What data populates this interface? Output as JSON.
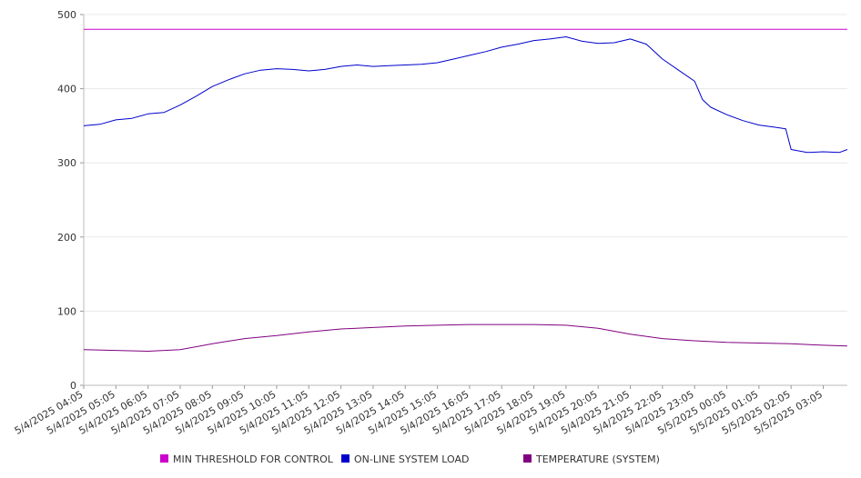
{
  "chart_data": {
    "type": "line",
    "title": "",
    "xlabel": "",
    "ylabel": "",
    "ylim": [
      0,
      500
    ],
    "yticks": [
      0,
      100,
      200,
      300,
      400,
      500
    ],
    "x_ticks": [
      "5/4/2025 04:05",
      "5/4/2025 05:05",
      "5/4/2025 06:05",
      "5/4/2025 07:05",
      "5/4/2025 08:05",
      "5/4/2025 09:05",
      "5/4/2025 10:05",
      "5/4/2025 11:05",
      "5/4/2025 12:05",
      "5/4/2025 13:05",
      "5/4/2025 14:05",
      "5/4/2025 15:05",
      "5/4/2025 16:05",
      "5/4/2025 17:05",
      "5/4/2025 18:05",
      "5/4/2025 19:05",
      "5/4/2025 20:05",
      "5/4/2025 21:05",
      "5/4/2025 22:05",
      "5/4/2025 23:05",
      "5/5/2025 00:05",
      "5/5/2025 01:05",
      "5/5/2025 02:05",
      "5/5/2025 03:05"
    ],
    "grid": true,
    "legend_position": "bottom",
    "series": [
      {
        "name": "MIN THRESHOLD FOR CONTROL",
        "color": "#cc00cc",
        "points": [
          [
            "5/4/2025 04:05",
            480
          ],
          [
            "5/5/2025 03:05",
            480
          ],
          [
            "5/5/2025 03:50",
            480
          ]
        ]
      },
      {
        "name": "ON-LINE SYSTEM LOAD",
        "color": "#0000cc",
        "points": [
          [
            "5/4/2025 04:05",
            350
          ],
          [
            "5/4/2025 04:35",
            352
          ],
          [
            "5/4/2025 05:05",
            358
          ],
          [
            "5/4/2025 05:35",
            360
          ],
          [
            "5/4/2025 06:05",
            366
          ],
          [
            "5/4/2025 06:35",
            368
          ],
          [
            "5/4/2025 07:05",
            378
          ],
          [
            "5/4/2025 07:35",
            390
          ],
          [
            "5/4/2025 08:05",
            403
          ],
          [
            "5/4/2025 08:35",
            412
          ],
          [
            "5/4/2025 09:05",
            420
          ],
          [
            "5/4/2025 09:35",
            425
          ],
          [
            "5/4/2025 10:05",
            427
          ],
          [
            "5/4/2025 10:35",
            426
          ],
          [
            "5/4/2025 11:05",
            424
          ],
          [
            "5/4/2025 11:35",
            426
          ],
          [
            "5/4/2025 12:05",
            430
          ],
          [
            "5/4/2025 12:35",
            432
          ],
          [
            "5/4/2025 13:05",
            430
          ],
          [
            "5/4/2025 13:35",
            431
          ],
          [
            "5/4/2025 14:05",
            432
          ],
          [
            "5/4/2025 14:35",
            433
          ],
          [
            "5/4/2025 15:05",
            435
          ],
          [
            "5/4/2025 15:35",
            440
          ],
          [
            "5/4/2025 16:05",
            445
          ],
          [
            "5/4/2025 16:35",
            450
          ],
          [
            "5/4/2025 17:05",
            456
          ],
          [
            "5/4/2025 17:35",
            460
          ],
          [
            "5/4/2025 18:05",
            465
          ],
          [
            "5/4/2025 18:35",
            467
          ],
          [
            "5/4/2025 19:05",
            470
          ],
          [
            "5/4/2025 19:35",
            464
          ],
          [
            "5/4/2025 20:05",
            461
          ],
          [
            "5/4/2025 20:35",
            462
          ],
          [
            "5/4/2025 21:05",
            467
          ],
          [
            "5/4/2025 21:35",
            460
          ],
          [
            "5/4/2025 22:05",
            440
          ],
          [
            "5/4/2025 22:35",
            425
          ],
          [
            "5/4/2025 23:05",
            410
          ],
          [
            "5/4/2025 23:20",
            385
          ],
          [
            "5/4/2025 23:35",
            375
          ],
          [
            "5/5/2025 00:05",
            365
          ],
          [
            "5/5/2025 00:35",
            357
          ],
          [
            "5/5/2025 01:05",
            351
          ],
          [
            "5/5/2025 01:35",
            348
          ],
          [
            "5/5/2025 01:55",
            346
          ],
          [
            "5/5/2025 02:05",
            318
          ],
          [
            "5/5/2025 02:35",
            314
          ],
          [
            "5/5/2025 03:05",
            315
          ],
          [
            "5/5/2025 03:35",
            314
          ],
          [
            "5/5/2025 03:50",
            318
          ]
        ]
      },
      {
        "name": "TEMPERATURE (SYSTEM)",
        "color": "#800080",
        "points": [
          [
            "5/4/2025 04:05",
            48
          ],
          [
            "5/4/2025 05:05",
            47
          ],
          [
            "5/4/2025 06:05",
            46
          ],
          [
            "5/4/2025 07:05",
            48
          ],
          [
            "5/4/2025 08:05",
            56
          ],
          [
            "5/4/2025 09:05",
            63
          ],
          [
            "5/4/2025 10:05",
            67
          ],
          [
            "5/4/2025 11:05",
            72
          ],
          [
            "5/4/2025 12:05",
            76
          ],
          [
            "5/4/2025 13:05",
            78
          ],
          [
            "5/4/2025 14:05",
            80
          ],
          [
            "5/4/2025 15:05",
            81
          ],
          [
            "5/4/2025 16:05",
            82
          ],
          [
            "5/4/2025 17:05",
            82
          ],
          [
            "5/4/2025 18:05",
            82
          ],
          [
            "5/4/2025 19:05",
            81
          ],
          [
            "5/4/2025 20:05",
            77
          ],
          [
            "5/4/2025 21:05",
            69
          ],
          [
            "5/4/2025 22:05",
            63
          ],
          [
            "5/4/2025 23:05",
            60
          ],
          [
            "5/5/2025 00:05",
            58
          ],
          [
            "5/5/2025 01:05",
            57
          ],
          [
            "5/5/2025 02:05",
            56
          ],
          [
            "5/5/2025 03:05",
            54
          ],
          [
            "5/5/2025 03:50",
            53
          ]
        ]
      }
    ]
  }
}
